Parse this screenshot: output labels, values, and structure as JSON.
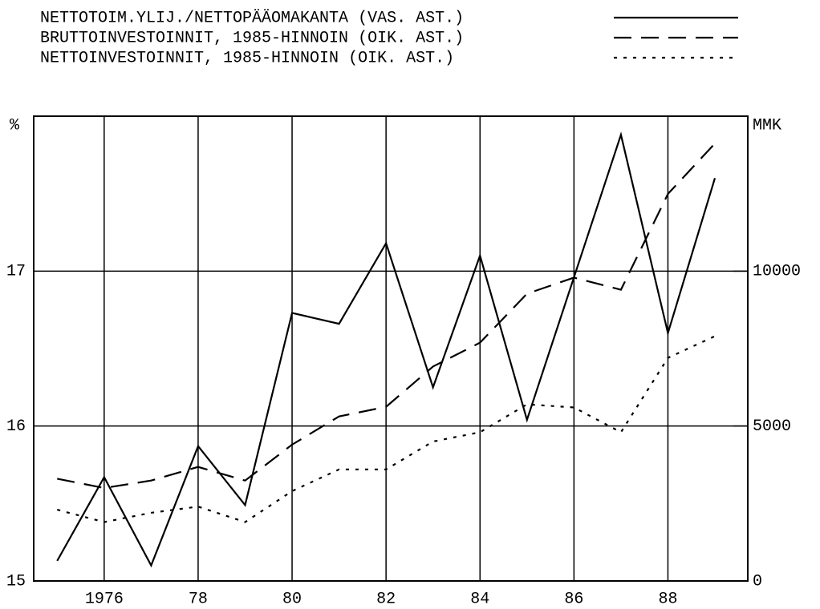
{
  "chart_data": {
    "type": "line",
    "y_label": "%",
    "y2_label": "MMK",
    "x": [
      1975,
      1976,
      1977,
      1978,
      1979,
      1980,
      1981,
      1982,
      1983,
      1984,
      1985,
      1986,
      1987,
      1988,
      1989
    ],
    "xlim": [
      1974.5,
      1989.7
    ],
    "xticks": [
      {
        "value": 1976,
        "label": "1976"
      },
      {
        "value": 1978,
        "label": "78"
      },
      {
        "value": 1980,
        "label": "80"
      },
      {
        "value": 1982,
        "label": "82"
      },
      {
        "value": 1984,
        "label": "84"
      },
      {
        "value": 1986,
        "label": "86"
      },
      {
        "value": 1988,
        "label": "88"
      }
    ],
    "ylim": [
      15,
      18
    ],
    "yticks": [
      15,
      16,
      17
    ],
    "y2lim": [
      0,
      15000
    ],
    "y2ticks": [
      0,
      5000,
      10000
    ],
    "grid": true,
    "series": [
      {
        "name": "NETTOTOIM.YLIJ./NETTOPÄÄOMAKANTA (VAS. AST.)",
        "color": "#000000",
        "dash": "solid",
        "values": [
          15.13,
          15.67,
          15.1,
          15.87,
          15.49,
          16.73,
          16.66,
          17.18,
          16.25,
          17.1,
          16.04,
          16.96,
          17.88,
          16.6,
          17.6
        ]
      },
      {
        "name": "BRUTTOINVESTOINNIT, 1985-HINNOIN (OIK. AST.)",
        "color": "#000000",
        "dash": "dashed",
        "axis": "y2",
        "values": [
          3300,
          3000,
          3240,
          3680,
          3240,
          4400,
          5310,
          5620,
          6920,
          7690,
          9270,
          9790,
          9400,
          12490,
          14120
        ]
      },
      {
        "name": "NETTOINVESTOINNIT, 1985-HINNOIN (OIK. AST.)",
        "color": "#000000",
        "dash": "dotted",
        "axis": "y2",
        "values": [
          2300,
          1900,
          2200,
          2400,
          1900,
          2900,
          3600,
          3600,
          4500,
          4800,
          5700,
          5600,
          4800,
          7200,
          7900
        ]
      }
    ]
  }
}
